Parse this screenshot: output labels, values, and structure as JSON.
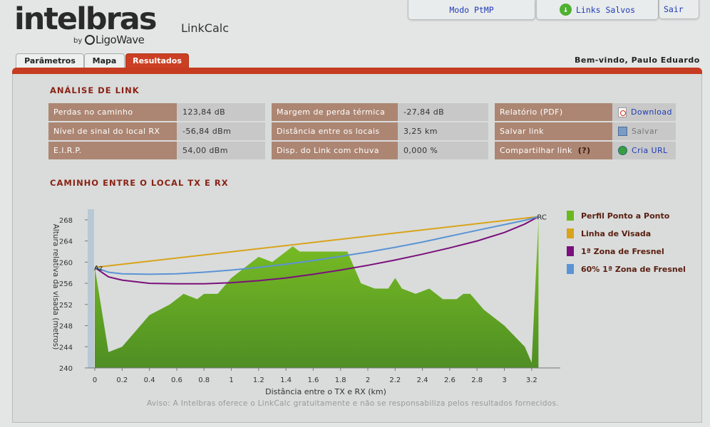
{
  "header": {
    "logo_text": "intelbras",
    "logo_by": "by",
    "logo_partner": "LigoWave",
    "app_title": "LinkCalc",
    "btn_ptmp": "Modo PtMP",
    "btn_links": "Links Salvos",
    "btn_sair": "Sair",
    "welcome": "Bem-vindo, Paulo Eduardo"
  },
  "tabs": [
    {
      "label": "Parâmetros"
    },
    {
      "label": "Mapa"
    },
    {
      "label": "Resultados",
      "active": true
    }
  ],
  "analise": {
    "title": "ANÁLISE DE LINK",
    "col1": [
      {
        "label": "Perdas no caminho",
        "value": "123,84 dB"
      },
      {
        "label": "Nível de sinal do local RX",
        "value": "-56,84 dBm"
      },
      {
        "label": "E.I.R.P.",
        "value": "54,00 dBm"
      }
    ],
    "col2": [
      {
        "label": "Margem de perda térmica",
        "value": "-27,84 dB"
      },
      {
        "label": "Distância entre os locais",
        "value": "3,25 km"
      },
      {
        "label": "Disp. do Link com chuva",
        "value": "0,000 %"
      }
    ],
    "col3": [
      {
        "label": "Relatório (PDF)",
        "action": "Download",
        "icon": "pdf-icon"
      },
      {
        "label": "Salvar link",
        "action": "Salvar",
        "icon": "save-icon"
      },
      {
        "label": "Compartilhar link",
        "help": "(?)",
        "action": "Cria URL",
        "icon": "globe-icon"
      }
    ]
  },
  "caminho": {
    "title": "CAMINHO ENTRE O LOCAL TX E RX"
  },
  "chart_data": {
    "type": "area",
    "xlabel": "Distância entre o TX e RX (km)",
    "ylabel": "Altura relativa da visada (metros)",
    "xlim": [
      0,
      3.3
    ],
    "ylim": [
      240,
      270
    ],
    "x_ticks": [
      "0",
      "0.2",
      "0.4",
      "0.6",
      "0.8",
      "1",
      "1.2",
      "1.4",
      "1.6",
      "1.8",
      "2",
      "2.2",
      "2.4",
      "2.6",
      "2.8",
      "3",
      "3.2"
    ],
    "y_ticks": [
      "240",
      "244",
      "248",
      "252",
      "256",
      "260",
      "264",
      "268"
    ],
    "endpoint_labels": {
      "tx": "Az",
      "rx": "RC"
    },
    "legend_position": "right",
    "series": [
      {
        "name": "Perfil Ponto a Ponto",
        "color": "#6ab820",
        "x": [
          0,
          0.1,
          0.2,
          0.4,
          0.55,
          0.65,
          0.75,
          0.8,
          0.9,
          1.0,
          1.1,
          1.2,
          1.3,
          1.4,
          1.45,
          1.5,
          1.6,
          1.75,
          1.85,
          1.95,
          2.05,
          2.15,
          2.2,
          2.25,
          2.35,
          2.45,
          2.55,
          2.65,
          2.7,
          2.75,
          2.85,
          3.0,
          3.15,
          3.2,
          3.25
        ],
        "y": [
          259,
          243,
          244,
          250,
          252,
          254,
          253,
          254,
          254,
          257,
          259,
          261,
          260,
          262,
          263,
          262,
          262,
          262,
          262,
          256,
          255,
          255,
          257,
          255,
          254,
          255,
          253,
          253,
          254,
          254,
          251,
          248,
          244,
          241,
          268
        ]
      },
      {
        "name": "Linha de Visada",
        "color": "#d9a31a",
        "x": [
          0,
          3.25
        ],
        "y": [
          259,
          268.6
        ]
      },
      {
        "name": "1ª Zona de Fresnel",
        "color": "#7b0f7b",
        "x": [
          0,
          0.1,
          0.2,
          0.4,
          0.6,
          0.8,
          1.0,
          1.2,
          1.4,
          1.6,
          1.8,
          2.0,
          2.2,
          2.4,
          2.6,
          2.8,
          3.0,
          3.15,
          3.25
        ],
        "y": [
          259,
          257.2,
          256.6,
          256.0,
          255.9,
          255.9,
          256.1,
          256.5,
          257.0,
          257.7,
          258.5,
          259.4,
          260.4,
          261.5,
          262.7,
          264.0,
          265.6,
          267.2,
          268.6
        ]
      },
      {
        "name": "60% 1ª Zona de Fresnel",
        "color": "#5b93d6",
        "x": [
          0,
          0.1,
          0.2,
          0.4,
          0.6,
          0.8,
          1.0,
          1.2,
          1.4,
          1.6,
          1.8,
          2.0,
          2.2,
          2.4,
          2.6,
          2.8,
          3.0,
          3.15,
          3.25
        ],
        "y": [
          259,
          258.1,
          257.8,
          257.7,
          257.8,
          258.1,
          258.5,
          259.0,
          259.6,
          260.3,
          261.1,
          261.9,
          262.8,
          263.8,
          264.9,
          266.0,
          267.1,
          267.9,
          268.6
        ]
      }
    ]
  },
  "aviso": "Aviso: A Intelbras oferece o LinkCalc gratuitamente e não se responsabiliza pelos resultados fornecidos."
}
